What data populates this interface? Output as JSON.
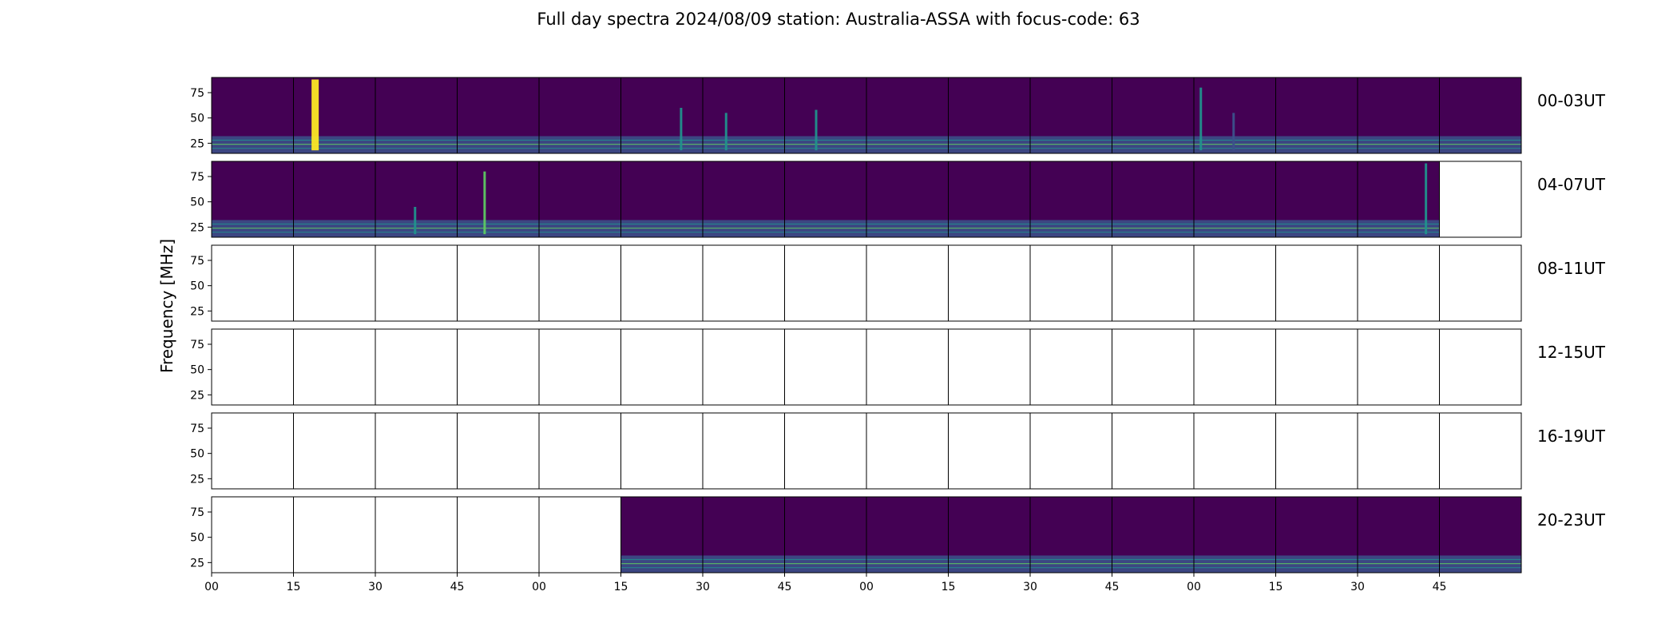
{
  "chart_data": {
    "type": "heatmap",
    "title": "Full day spectra 2024/08/09 station: Australia-ASSA with focus-code: 63",
    "ylabel": "Frequency [MHz]",
    "ylim": [
      15,
      90
    ],
    "yticks": [
      25,
      50,
      75
    ],
    "xtick_labels": [
      "00",
      "15",
      "30",
      "45",
      "00",
      "15",
      "30",
      "45",
      "00",
      "15",
      "30",
      "45",
      "00",
      "15",
      "30",
      "45"
    ],
    "colormap": [
      "#440154",
      "#3b528b",
      "#21918c",
      "#5ec962",
      "#fde725"
    ],
    "panels_per_row": 16,
    "panel_minutes": 15,
    "rows": [
      {
        "label": "00-03UT",
        "data": [
          1,
          1,
          1,
          1,
          1,
          1,
          1,
          1,
          1,
          1,
          1,
          1,
          1,
          1,
          1,
          1
        ],
        "bursts": [
          {
            "panel": 1,
            "pos": 0.25,
            "level": 4,
            "fmax": 88
          },
          {
            "panel": 5,
            "pos": 0.75,
            "level": 2,
            "fmax": 60
          },
          {
            "panel": 6,
            "pos": 0.3,
            "level": 2,
            "fmax": 55
          },
          {
            "panel": 7,
            "pos": 0.4,
            "level": 2,
            "fmax": 58
          },
          {
            "panel": 12,
            "pos": 0.1,
            "level": 2,
            "fmax": 80
          },
          {
            "panel": 12,
            "pos": 0.5,
            "level": 1,
            "fmax": 55
          }
        ]
      },
      {
        "label": "04-07UT",
        "data": [
          1,
          1,
          1,
          1,
          1,
          1,
          1,
          1,
          1,
          1,
          1,
          1,
          1,
          1,
          1,
          0
        ],
        "bursts": [
          {
            "panel": 2,
            "pos": 0.5,
            "level": 2,
            "fmax": 45
          },
          {
            "panel": 3,
            "pos": 0.35,
            "level": 3,
            "fmax": 80
          },
          {
            "panel": 14,
            "pos": 0.85,
            "level": 2,
            "fmax": 88
          }
        ]
      },
      {
        "label": "08-11UT",
        "data": [
          0,
          0,
          0,
          0,
          0,
          0,
          0,
          0,
          0,
          0,
          0,
          0,
          0,
          0,
          0,
          0
        ],
        "bursts": []
      },
      {
        "label": "12-15UT",
        "data": [
          0,
          0,
          0,
          0,
          0,
          0,
          0,
          0,
          0,
          0,
          0,
          0,
          0,
          0,
          0,
          0
        ],
        "bursts": []
      },
      {
        "label": "16-19UT",
        "data": [
          0,
          0,
          0,
          0,
          0,
          0,
          0,
          0,
          0,
          0,
          0,
          0,
          0,
          0,
          0,
          0
        ],
        "bursts": []
      },
      {
        "label": "20-23UT",
        "data": [
          0,
          0,
          0,
          0,
          0,
          1,
          1,
          1,
          1,
          1,
          1,
          1,
          1,
          1,
          1,
          1
        ],
        "bursts": []
      }
    ]
  }
}
